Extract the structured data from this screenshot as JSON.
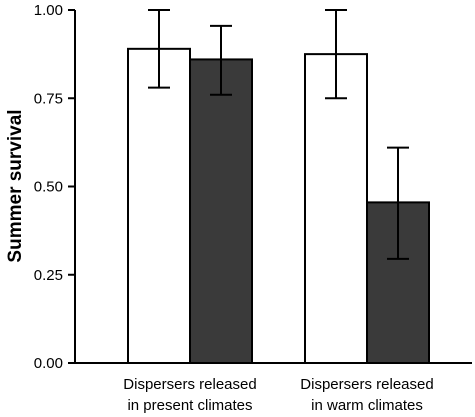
{
  "chart_data": {
    "type": "bar",
    "title": "",
    "xlabel": "",
    "ylabel": "Summer survival",
    "ylim": [
      0,
      1
    ],
    "yticks": [
      "0.00",
      "0.25",
      "0.50",
      "0.75",
      "1.00"
    ],
    "categories": [
      [
        "Dispersers released",
        "in present climates"
      ],
      [
        "Dispersers released",
        "in warm climates"
      ]
    ],
    "series": [
      {
        "color": "#ffffff",
        "values": [
          0.89,
          0.875
        ],
        "err_low": [
          0.78,
          0.75
        ],
        "err_high": [
          1.0,
          1.0
        ]
      },
      {
        "color": "#3a3a3a",
        "values": [
          0.86,
          0.455
        ],
        "err_low": [
          0.76,
          0.295
        ],
        "err_high": [
          0.955,
          0.61
        ]
      }
    ],
    "grid": false,
    "legend": "none"
  }
}
